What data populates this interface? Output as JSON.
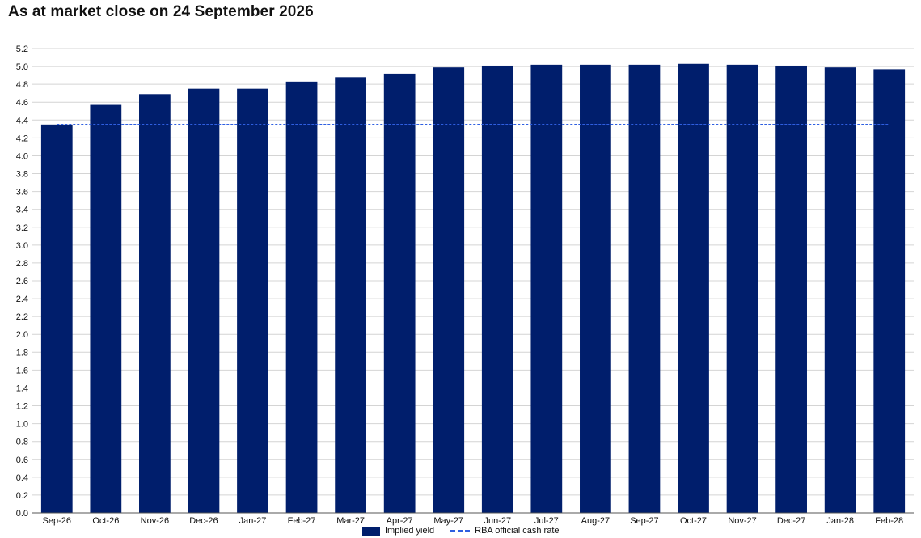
{
  "page": {
    "title": "As at market close on 24 September 2026"
  },
  "legend": {
    "bars_label": "Implied yield",
    "line_label": "RBA official cash rate"
  },
  "colors": {
    "bar": "#001e6c",
    "line": "#2f5fe0",
    "grid": "#d4d4d4",
    "axis": "#555555",
    "text": "#111111"
  },
  "chart_data": {
    "type": "bar",
    "title": "As at market close on 24 September 2026",
    "xlabel": "",
    "ylabel": "",
    "categories": [
      "Sep-26",
      "Oct-26",
      "Nov-26",
      "Dec-26",
      "Jan-27",
      "Feb-27",
      "Mar-27",
      "Apr-27",
      "May-27",
      "Jun-27",
      "Jul-27",
      "Aug-27",
      "Sep-27",
      "Oct-27",
      "Nov-27",
      "Dec-27",
      "Jan-28",
      "Feb-28"
    ],
    "series": [
      {
        "name": "Implied yield",
        "type": "bar",
        "values": [
          4.35,
          4.57,
          4.69,
          4.75,
          4.75,
          4.83,
          4.88,
          4.92,
          4.99,
          5.01,
          5.02,
          5.02,
          5.02,
          5.03,
          5.02,
          5.01,
          4.99,
          4.97
        ]
      },
      {
        "name": "RBA official cash rate",
        "type": "line",
        "style": "dashed",
        "values": [
          4.35,
          4.35,
          4.35,
          4.35,
          4.35,
          4.35,
          4.35,
          4.35,
          4.35,
          4.35,
          4.35,
          4.35,
          4.35,
          4.35,
          4.35,
          4.35,
          4.35,
          4.35
        ]
      }
    ],
    "ylim": [
      0,
      5.2
    ],
    "ytick_step": 0.2,
    "yticks": [
      "0.0",
      "0.2",
      "0.4",
      "0.6",
      "0.8",
      "1.0",
      "1.2",
      "1.4",
      "1.6",
      "1.8",
      "2.0",
      "2.2",
      "2.4",
      "2.6",
      "2.8",
      "3.0",
      "3.2",
      "3.4",
      "3.6",
      "3.8",
      "4.0",
      "4.2",
      "4.4",
      "4.6",
      "4.8",
      "5.0",
      "5.2"
    ],
    "grid": true,
    "legend_position": "bottom"
  }
}
